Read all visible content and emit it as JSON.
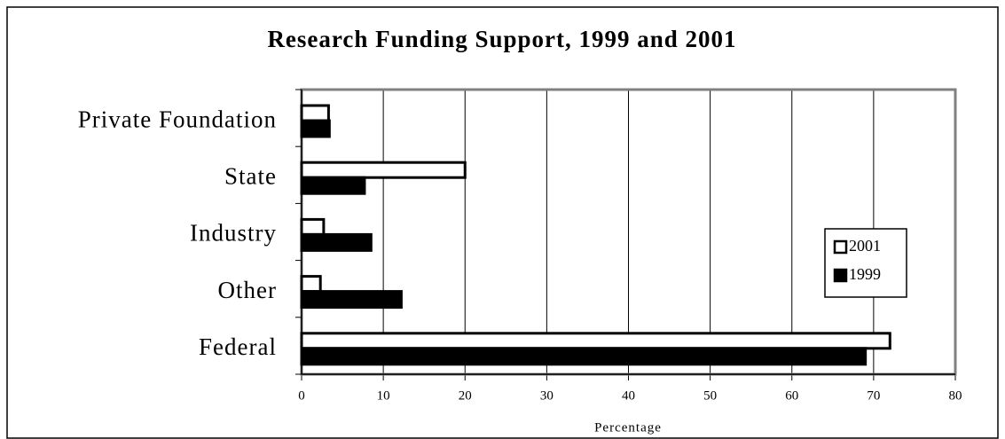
{
  "chart_data": {
    "type": "hbar",
    "title": "Research Funding Support, 1999 and 2001",
    "categories": [
      "Private Foundation",
      "State",
      "Industry",
      "Other",
      "Federal"
    ],
    "series": [
      {
        "name": "2001",
        "color": "#ffffff",
        "values": [
          3.3,
          20,
          2.7,
          2.3,
          72
        ]
      },
      {
        "name": "1999",
        "color": "#000000",
        "values": [
          3.4,
          7.7,
          8.5,
          12.2,
          69
        ]
      }
    ],
    "xlabel": "Percentage",
    "xlim": [
      0,
      80
    ],
    "xticks": [
      0,
      10,
      20,
      30,
      40,
      50,
      60,
      70,
      80
    ],
    "grid": true,
    "legend": "right"
  }
}
